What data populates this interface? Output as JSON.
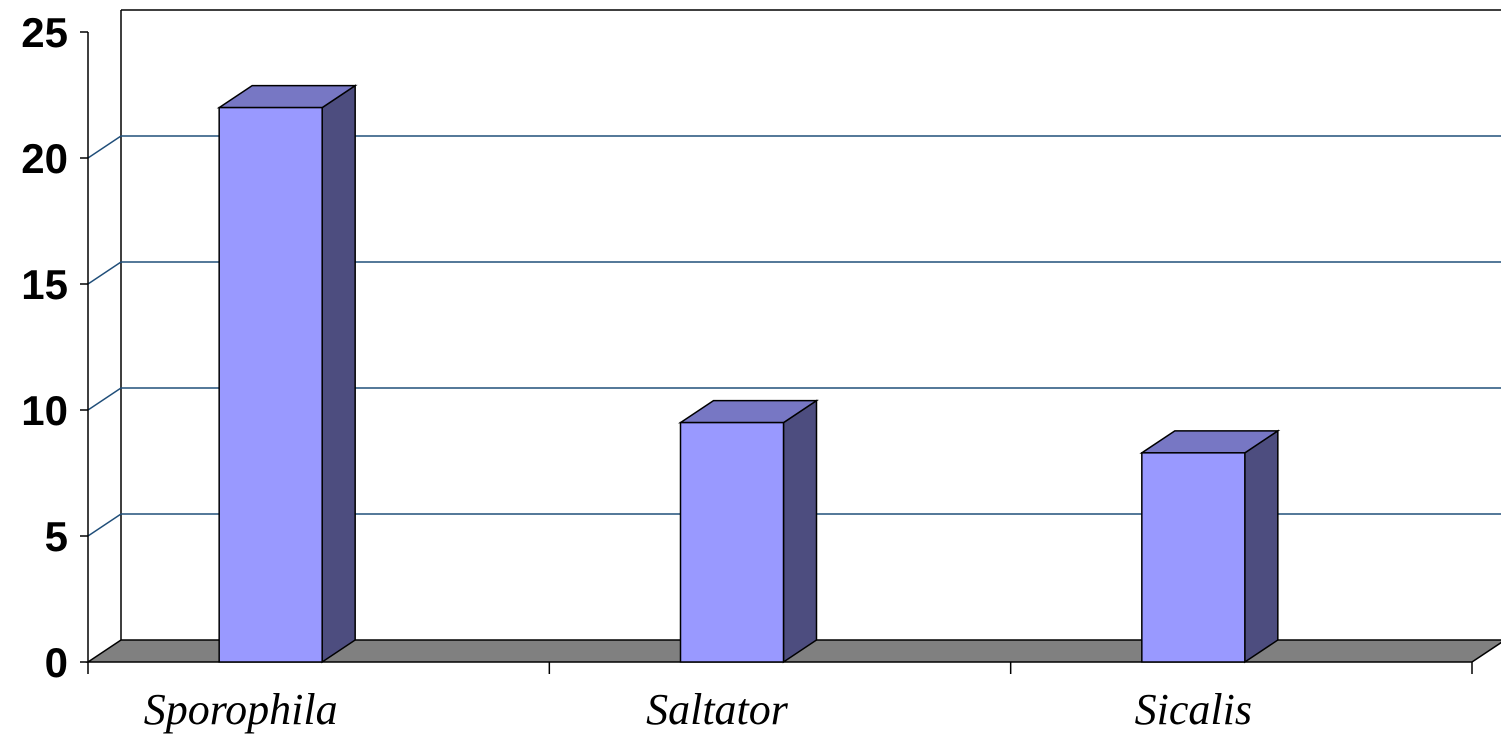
{
  "chart_data": {
    "type": "bar",
    "style": "3d-column",
    "categories": [
      "Sporophila",
      "Saltator",
      "Sicalis"
    ],
    "values": [
      22,
      9.5,
      8.3
    ],
    "ylim": [
      0,
      25
    ],
    "yticks": [
      "0",
      "5",
      "10",
      "15",
      "20",
      "25"
    ],
    "title": "",
    "xlabel": "",
    "ylabel": "",
    "grid": true,
    "legend": "none",
    "colors": {
      "bar_front": "#9999FF",
      "bar_side": "#4D4D7F",
      "bar_top": "#7777C4",
      "floor": "#808080",
      "gridline": "#1F4E79"
    }
  }
}
